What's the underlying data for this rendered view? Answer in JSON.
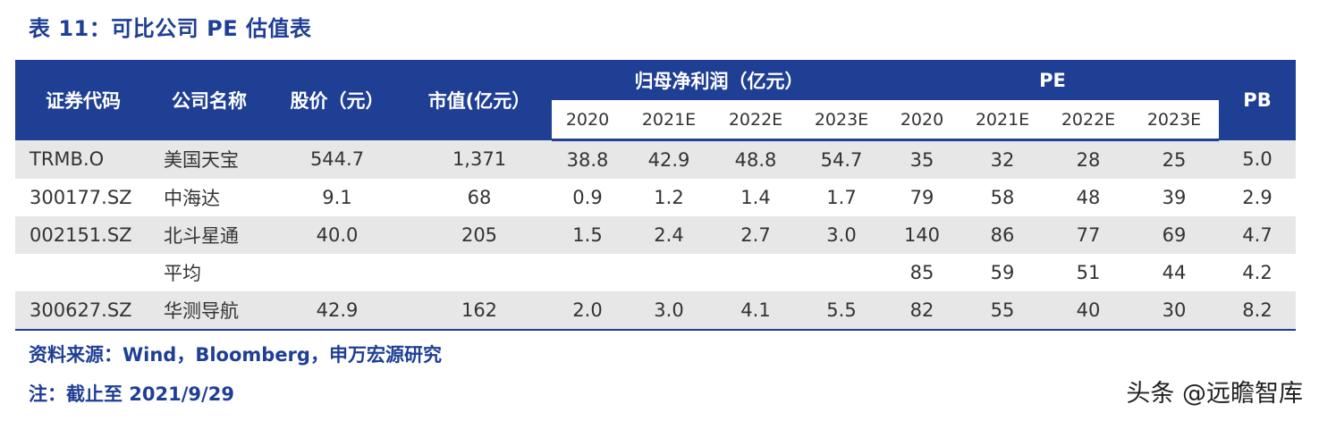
{
  "title": "表 11：可比公司 PE 估值表",
  "headers": {
    "code": "证券代码",
    "name": "公司名称",
    "price": "股价（元）",
    "mktcap": "市值(亿元）",
    "profit_group": "归母净利润（亿元）",
    "pe_group": "PE",
    "pb": "PB",
    "profit_years": [
      "2020",
      "2021E",
      "2022E",
      "2023E"
    ],
    "pe_years": [
      "2020",
      "2021E",
      "2022E",
      "2023E"
    ]
  },
  "rows": [
    {
      "code": "TRMB.O",
      "name": "美国天宝",
      "price": "544.7",
      "mktcap": "1,371",
      "profit": [
        "38.8",
        "42.9",
        "48.8",
        "54.7"
      ],
      "pe": [
        "35",
        "32",
        "28",
        "25"
      ],
      "pb": "5.0"
    },
    {
      "code": "300177.SZ",
      "name": "中海达",
      "price": "9.1",
      "mktcap": "68",
      "profit": [
        "0.9",
        "1.2",
        "1.4",
        "1.7"
      ],
      "pe": [
        "79",
        "58",
        "48",
        "39"
      ],
      "pb": "2.9"
    },
    {
      "code": "002151.SZ",
      "name": "北斗星通",
      "price": "40.0",
      "mktcap": "205",
      "profit": [
        "1.5",
        "2.4",
        "2.7",
        "3.0"
      ],
      "pe": [
        "140",
        "86",
        "77",
        "69"
      ],
      "pb": "4.7"
    },
    {
      "code": "",
      "name": "平均",
      "price": "",
      "mktcap": "",
      "profit": [
        "",
        "",
        "",
        ""
      ],
      "pe": [
        "85",
        "59",
        "51",
        "44"
      ],
      "pb": "4.2"
    },
    {
      "code": "300627.SZ",
      "name": "华测导航",
      "price": "42.9",
      "mktcap": "162",
      "profit": [
        "2.0",
        "3.0",
        "4.1",
        "5.5"
      ],
      "pe": [
        "82",
        "55",
        "40",
        "30"
      ],
      "pb": "8.2"
    }
  ],
  "source_note": "资料来源：Wind，Bloomberg，申万宏源研究",
  "date_note": "注：截止至 2021/9/29",
  "watermark": "头条 @远瞻智库"
}
